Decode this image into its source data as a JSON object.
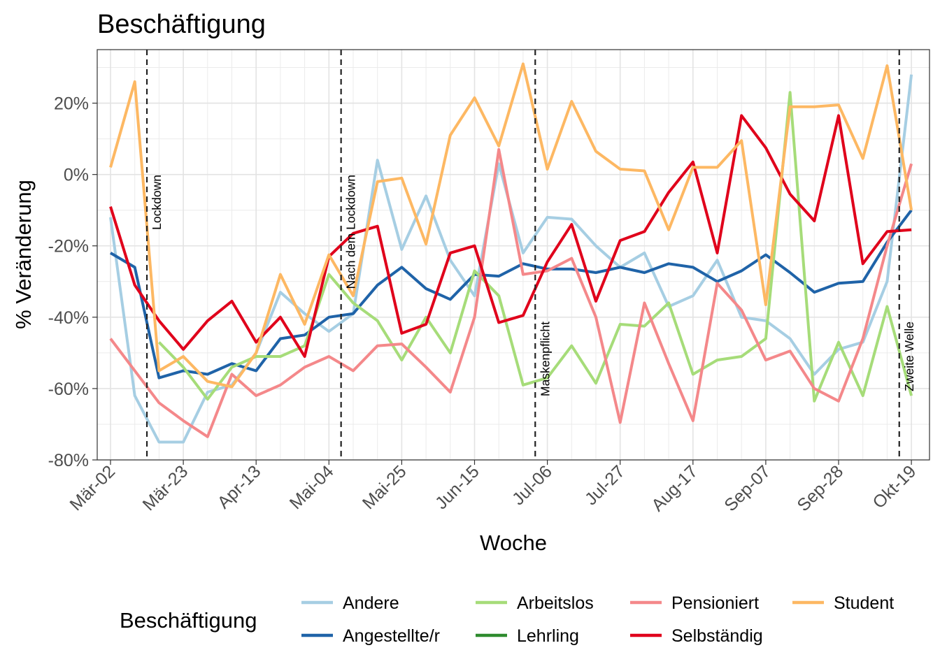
{
  "chart_data": {
    "type": "line",
    "title": "Beschäftigung",
    "xlabel": "Woche",
    "ylabel": "% Veränderung",
    "ylim": [
      -80,
      35
    ],
    "yticks": [
      -80,
      -60,
      -40,
      -20,
      0,
      20
    ],
    "ytick_labels": [
      "-80%",
      "-60%",
      "-40%",
      "-20%",
      "0%",
      "20%"
    ],
    "x": [
      "Mär-02",
      "Mär-09",
      "Mär-16",
      "Mär-23",
      "Mär-30",
      "Apr-06",
      "Apr-13",
      "Apr-20",
      "Apr-27",
      "Mai-04",
      "Mai-11",
      "Mai-18",
      "Mai-25",
      "Jun-01",
      "Jun-08",
      "Jun-15",
      "Jun-22",
      "Jun-29",
      "Jul-06",
      "Jul-13",
      "Jul-20",
      "Jul-27",
      "Aug-03",
      "Aug-10",
      "Aug-17",
      "Aug-24",
      "Aug-31",
      "Sep-07",
      "Sep-14",
      "Sep-21",
      "Sep-28",
      "Okt-05",
      "Okt-12",
      "Okt-19"
    ],
    "xtick_labels": [
      "Mär-02",
      "Mär-23",
      "Apr-13",
      "Mai-04",
      "Mai-25",
      "Jun-15",
      "Jul-06",
      "Jul-27",
      "Aug-17",
      "Sep-07",
      "Sep-28",
      "Okt-19"
    ],
    "xtick_indices": [
      0,
      3,
      6,
      9,
      12,
      15,
      18,
      21,
      24,
      27,
      30,
      33
    ],
    "grid": true,
    "legend_title": "Beschäftigung",
    "legend_position": "bottom",
    "annotations": [
      {
        "label": "Lockdown",
        "x_index": 1.5
      },
      {
        "label": "Nach dem Lockdown",
        "x_index": 9.5
      },
      {
        "label": "Maskenpflicht",
        "x_index": 17.5
      },
      {
        "label": "Zweite Welle",
        "x_index": 32.5
      }
    ],
    "series": [
      {
        "name": "Andere",
        "color": "#A6CEE3",
        "values": [
          -12,
          -62,
          -75,
          -75,
          -61,
          -59,
          -50,
          -33,
          -39,
          -44,
          -39,
          4,
          -21,
          -6,
          -24,
          -34,
          3,
          -22,
          -12,
          -12.5,
          -20,
          -26,
          -22,
          -37,
          -34,
          -24,
          -40,
          -41,
          -46,
          -56,
          -49,
          -47,
          -30,
          28
        ]
      },
      {
        "name": "Angestellte/r",
        "color": "#1F63A8",
        "values": [
          -22,
          -26,
          -57,
          -55,
          -56,
          -53,
          -55,
          -46,
          -45,
          -40,
          -39,
          -31,
          -26,
          -32,
          -35,
          -28,
          -28.5,
          -25,
          -26.5,
          -26.5,
          -27.5,
          -26,
          -27.5,
          -25,
          -26,
          -30,
          -27,
          -22.5,
          -27.5,
          -33,
          -30.5,
          -30,
          -19,
          -10
        ]
      },
      {
        "name": "Arbeitslos",
        "color": "#A6DC79",
        "values": [
          null,
          null,
          -47,
          -54,
          -63,
          -54,
          -51,
          -51,
          -48,
          -28,
          -36,
          -41,
          -52,
          -40,
          -50,
          -27,
          -34,
          -59,
          -57,
          -48,
          -58.5,
          -42,
          -42.5,
          -36,
          -56,
          -52,
          -51,
          -46,
          23,
          -63.5,
          -47,
          -62,
          -37,
          -62
        ]
      },
      {
        "name": "Lehrling",
        "color": "#2E8B2E",
        "values": [
          null,
          null,
          null,
          null,
          null,
          null,
          null,
          null,
          null,
          null,
          null,
          null,
          null,
          null,
          null,
          null,
          null,
          null,
          null,
          null,
          null,
          null,
          null,
          null,
          null,
          null,
          null,
          null,
          null,
          null,
          null,
          null,
          null,
          null
        ]
      },
      {
        "name": "Pensioniert",
        "color": "#F4888A",
        "values": [
          -46,
          -55,
          -64,
          -69,
          -73.5,
          -56,
          -62,
          -59,
          -54,
          -51,
          -55,
          -48,
          -47.5,
          -54,
          -61,
          -40,
          7,
          -28,
          -27,
          -23.5,
          -40,
          -69.5,
          -36,
          -53,
          -69,
          -30.5,
          -38,
          -52,
          -49.5,
          -60,
          -63.5,
          -46,
          -20,
          3
        ]
      },
      {
        "name": "Selbständig",
        "color": "#E0001B",
        "values": [
          -9,
          -31,
          -41,
          -49,
          -41,
          -35.5,
          -47,
          -40,
          -51,
          -23,
          -16.5,
          -14.5,
          -44.5,
          -42,
          -22,
          -20,
          -41.5,
          -39.5,
          -24.5,
          -14,
          -35.5,
          -18.5,
          -16,
          -5,
          3.5,
          -22,
          16.5,
          7.5,
          -5.5,
          -13,
          16.5,
          -25,
          -16,
          -15.5
        ]
      },
      {
        "name": "Student",
        "color": "#FDB863",
        "values": [
          2,
          26,
          -55,
          -51,
          -58,
          -59.5,
          -50,
          -28,
          -42,
          -22.5,
          -34,
          -2,
          -1,
          -19.5,
          11,
          21.5,
          8,
          31,
          1.5,
          20.5,
          6.5,
          1.5,
          1,
          -15.5,
          2,
          2,
          9.5,
          -36.5,
          19,
          19,
          19.5,
          4.5,
          30.5,
          -10
        ]
      }
    ]
  }
}
